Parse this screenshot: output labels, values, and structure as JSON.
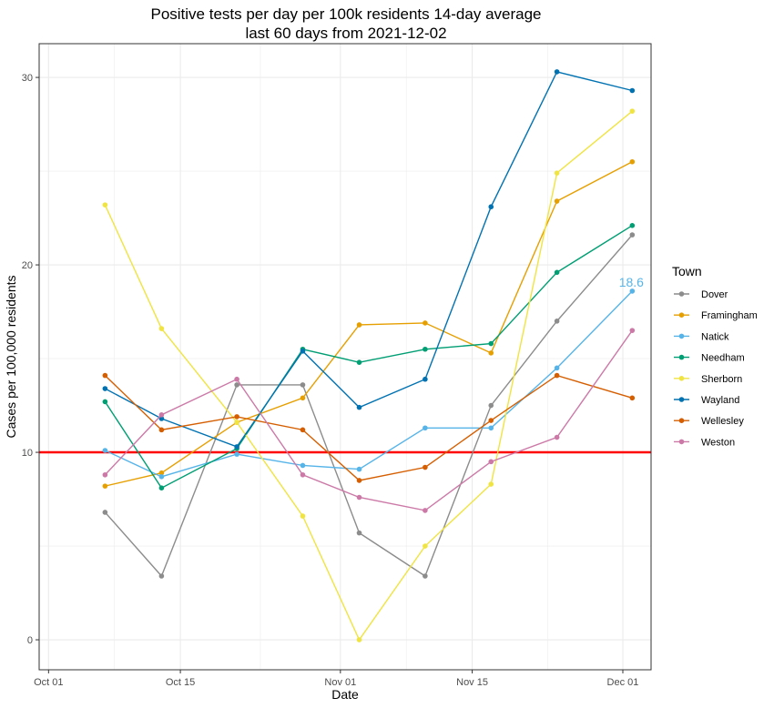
{
  "chart_data": {
    "type": "line",
    "title": [
      "Positive tests per day per 100k residents 14-day average",
      "last 60 days from 2021-12-02"
    ],
    "xlabel": "Date",
    "ylabel": "Cases per 100,000 residents",
    "x_dates": [
      "2021-10-07",
      "2021-10-13",
      "2021-10-21",
      "2021-10-28",
      "2021-11-03",
      "2021-11-10",
      "2021-11-17",
      "2021-11-24",
      "2021-12-02"
    ],
    "x_ticks": [
      {
        "date": "2021-10-01",
        "label": "Oct 01"
      },
      {
        "date": "2021-10-15",
        "label": "Oct 15"
      },
      {
        "date": "2021-11-01",
        "label": "Nov 01"
      },
      {
        "date": "2021-11-15",
        "label": "Nov 15"
      },
      {
        "date": "2021-12-01",
        "label": "Dec 01"
      }
    ],
    "xlim": [
      "2021-09-30",
      "2021-12-04"
    ],
    "ylim": [
      -1.6,
      31.8
    ],
    "y_ticks": [
      0,
      10,
      20,
      30
    ],
    "grid": true,
    "reference_line": {
      "y": 10,
      "color": "#ff0000"
    },
    "legend": {
      "title": "Town",
      "position": "right"
    },
    "series": [
      {
        "name": "Dover",
        "color": "#8c8c8c",
        "values": [
          6.8,
          3.4,
          13.6,
          13.6,
          5.7,
          3.4,
          12.5,
          17.0,
          21.6
        ]
      },
      {
        "name": "Framingham",
        "color": "#e69f00",
        "values": [
          8.2,
          8.9,
          11.6,
          12.9,
          16.8,
          16.9,
          15.3,
          23.4,
          25.5
        ]
      },
      {
        "name": "Natick",
        "color": "#56b4e9",
        "values": [
          10.1,
          8.7,
          9.9,
          9.3,
          9.1,
          11.3,
          11.3,
          14.5,
          18.6
        ]
      },
      {
        "name": "Needham",
        "color": "#009e73",
        "values": [
          12.7,
          8.1,
          10.2,
          15.5,
          14.8,
          15.5,
          15.8,
          19.6,
          22.1
        ]
      },
      {
        "name": "Sherborn",
        "color": "#f0e442",
        "values": [
          23.2,
          16.6,
          11.6,
          6.6,
          0.0,
          5.0,
          8.3,
          24.9,
          28.2
        ]
      },
      {
        "name": "Wayland",
        "color": "#0072b2",
        "values": [
          13.4,
          11.8,
          10.3,
          15.4,
          12.4,
          13.9,
          23.1,
          30.3,
          29.3
        ]
      },
      {
        "name": "Wellesley",
        "color": "#d55e00",
        "values": [
          14.1,
          11.2,
          11.9,
          11.2,
          8.5,
          9.2,
          11.7,
          14.1,
          12.9
        ]
      },
      {
        "name": "Weston",
        "color": "#cc79a7",
        "values": [
          8.8,
          12.0,
          13.9,
          8.8,
          7.6,
          6.9,
          9.5,
          10.8,
          16.5
        ]
      }
    ],
    "annotation": {
      "text": "18.6",
      "series": "Natick",
      "date": "2021-12-02",
      "value": 18.6,
      "color": "#56b4e9"
    }
  }
}
